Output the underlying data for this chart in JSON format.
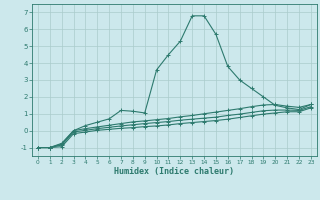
{
  "xlabel": "Humidex (Indice chaleur)",
  "x": [
    0,
    1,
    2,
    3,
    4,
    5,
    6,
    7,
    8,
    9,
    10,
    11,
    12,
    13,
    14,
    15,
    16,
    17,
    18,
    19,
    20,
    21,
    22,
    23
  ],
  "line1": [
    -1.0,
    -1.0,
    -0.8,
    0.0,
    0.3,
    0.5,
    0.7,
    1.2,
    1.15,
    1.05,
    3.6,
    4.5,
    5.3,
    6.8,
    6.8,
    5.7,
    3.8,
    3.0,
    2.5,
    2.0,
    1.5,
    1.35,
    1.25,
    1.55
  ],
  "line2": [
    -1.0,
    -1.0,
    -0.75,
    0.0,
    0.12,
    0.22,
    0.32,
    0.42,
    0.52,
    0.58,
    0.65,
    0.72,
    0.82,
    0.9,
    1.0,
    1.1,
    1.2,
    1.3,
    1.42,
    1.52,
    1.55,
    1.45,
    1.38,
    1.55
  ],
  "line3": [
    -1.0,
    -1.0,
    -0.85,
    -0.08,
    0.02,
    0.12,
    0.2,
    0.28,
    0.35,
    0.42,
    0.48,
    0.54,
    0.62,
    0.68,
    0.74,
    0.8,
    0.9,
    0.98,
    1.08,
    1.18,
    1.22,
    1.22,
    1.2,
    1.42
  ],
  "line4": [
    -1.0,
    -1.0,
    -0.95,
    -0.18,
    -0.08,
    0.02,
    0.08,
    0.14,
    0.18,
    0.24,
    0.28,
    0.34,
    0.42,
    0.48,
    0.54,
    0.6,
    0.68,
    0.78,
    0.88,
    0.98,
    1.05,
    1.12,
    1.12,
    1.35
  ],
  "line_color": "#2d7a6e",
  "bg_color": "#cce8ec",
  "grid_color": "#aacccc",
  "ylim": [
    -1.5,
    7.5
  ],
  "xlim": [
    -0.5,
    23.5
  ],
  "yticks": [
    -1,
    0,
    1,
    2,
    3,
    4,
    5,
    6,
    7
  ],
  "xticks": [
    0,
    1,
    2,
    3,
    4,
    5,
    6,
    7,
    8,
    9,
    10,
    11,
    12,
    13,
    14,
    15,
    16,
    17,
    18,
    19,
    20,
    21,
    22,
    23
  ]
}
